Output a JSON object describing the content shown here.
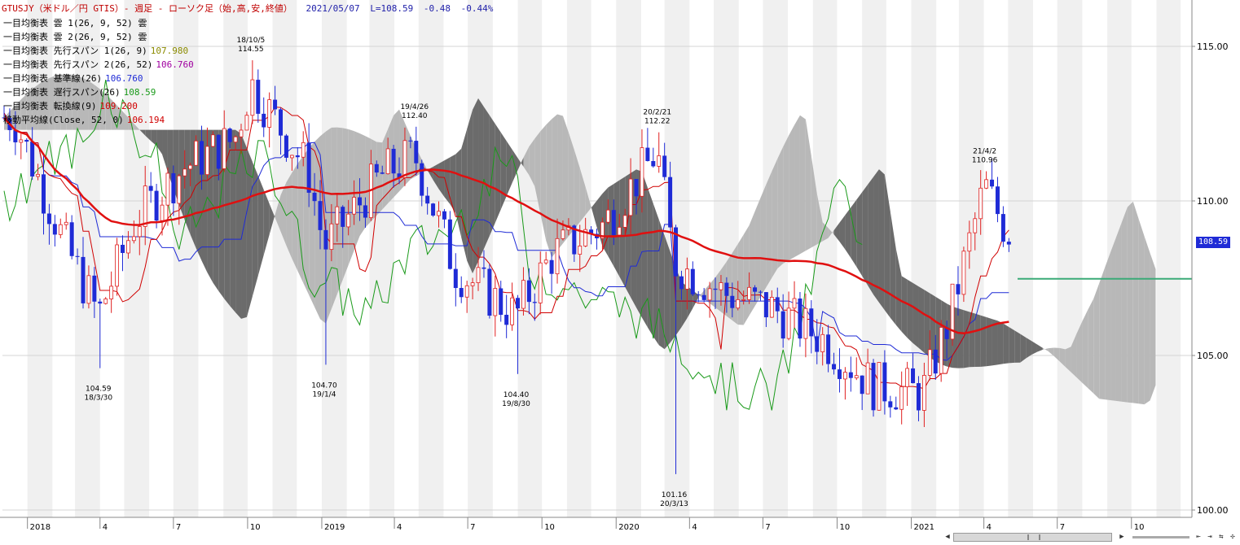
{
  "title": {
    "main": "GTUSJY（米ドル／円 GTIS）- 週足 - ローソク足（始,高,安,終値）",
    "date": "2021/05/07",
    "last": "L=108.59",
    "change": "-0.48",
    "change_pct": "-0.44%"
  },
  "legend": [
    {
      "label": "一目均衡表 雲 1(26, 9, 52) 雲",
      "value": "",
      "color": "#000000"
    },
    {
      "label": "一目均衡表 雲 2(26, 9, 52) 雲",
      "value": "",
      "color": "#000000"
    },
    {
      "label": "一目均衡表 先行スパン 1(26, 9)",
      "value": "107.980",
      "color": "#8b8b00"
    },
    {
      "label": "一目均衡表 先行スパン 2(26, 52)",
      "value": "106.760",
      "color": "#a000a0"
    },
    {
      "label": "一目均衡表 基準線(26)",
      "value": "106.760",
      "color": "#1f2bd6"
    },
    {
      "label": "一目均衡表 遅行スパン(26)",
      "value": "108.59",
      "color": "#1a9a1a"
    },
    {
      "label": "一目均衡表 転換線(9)",
      "value": "109.200",
      "color": "#d00000"
    },
    {
      "label": "移動平均線(Close, 52, 0)",
      "value": "106.194",
      "color": "#d00000"
    }
  ],
  "current_price_tag": "108.59",
  "colors": {
    "bull_candle": "#e02020",
    "bear_candle": "#1f2bd6",
    "cloud_up": "#b8b8b8",
    "cloud_down": "#6b6b6b",
    "ma": "#e01010",
    "kijun": "#1f2bd6",
    "tenkan": "#d00000",
    "chikou": "#1a9a1a",
    "hline": "#3aaa77"
  },
  "chart_data": {
    "type": "candlestick",
    "title": "",
    "xlabel": "",
    "ylabel": "",
    "ylim": [
      100,
      116.5
    ],
    "yticks": [
      "100.00",
      "105.00",
      "110.00",
      "115.00"
    ],
    "xticks": [
      {
        "label": "2018",
        "date": "2018-01"
      },
      {
        "label": "4",
        "date": "2018-04"
      },
      {
        "label": "7",
        "date": "2018-07"
      },
      {
        "label": "10",
        "date": "2018-10"
      },
      {
        "label": "2019",
        "date": "2019-01"
      },
      {
        "label": "4",
        "date": "2019-04"
      },
      {
        "label": "7",
        "date": "2019-07"
      },
      {
        "label": "10",
        "date": "2019-10"
      },
      {
        "label": "2020",
        "date": "2020-01"
      },
      {
        "label": "4",
        "date": "2020-04"
      },
      {
        "label": "7",
        "date": "2020-07"
      },
      {
        "label": "10",
        "date": "2020-10"
      },
      {
        "label": "2021",
        "date": "2021-01"
      },
      {
        "label": "4",
        "date": "2021-04"
      },
      {
        "label": "7",
        "date": "2021-07"
      },
      {
        "label": "10",
        "date": "2021-10"
      }
    ],
    "annotations": [
      {
        "date": "18/3/30",
        "price": "104.59",
        "position": "below"
      },
      {
        "date": "18/10/5",
        "price": "114.55",
        "position": "above"
      },
      {
        "date": "19/1/4",
        "price": "104.70",
        "position": "below"
      },
      {
        "date": "19/4/26",
        "price": "112.40",
        "position": "above"
      },
      {
        "date": "19/8/30",
        "price": "104.40",
        "position": "below"
      },
      {
        "date": "20/2/21",
        "price": "112.22",
        "position": "above"
      },
      {
        "date": "20/3/13",
        "price": "101.16",
        "position": "below"
      },
      {
        "date": "21/4/2",
        "price": "110.96",
        "position": "above"
      }
    ],
    "ohlc_keypoints": [
      {
        "x": "2017-12",
        "close": 112.7
      },
      {
        "x": "2018-02",
        "close": 108.7
      },
      {
        "x": "2018-03-30",
        "low": 104.59,
        "close": 106.3
      },
      {
        "x": "2018-05",
        "close": 109.4
      },
      {
        "x": "2018-07",
        "close": 111.1
      },
      {
        "x": "2018-09",
        "close": 112.0
      },
      {
        "x": "2018-10-05",
        "high": 114.55,
        "close": 113.8
      },
      {
        "x": "2018-12",
        "close": 111.0
      },
      {
        "x": "2019-01-04",
        "low": 104.7,
        "close": 108.5
      },
      {
        "x": "2019-03",
        "close": 110.8
      },
      {
        "x": "2019-04-26",
        "high": 112.4,
        "close": 111.5
      },
      {
        "x": "2019-06",
        "close": 107.8
      },
      {
        "x": "2019-08-30",
        "low": 104.4,
        "close": 106.3
      },
      {
        "x": "2019-10",
        "close": 108.3
      },
      {
        "x": "2019-12",
        "close": 109.2
      },
      {
        "x": "2020-02-21",
        "high": 112.22,
        "close": 111.6
      },
      {
        "x": "2020-03-13",
        "low": 101.16,
        "close": 108.0
      },
      {
        "x": "2020-05",
        "close": 107.0
      },
      {
        "x": "2020-07",
        "close": 106.5
      },
      {
        "x": "2020-09",
        "close": 105.5
      },
      {
        "x": "2020-11",
        "close": 104.0
      },
      {
        "x": "2021-01",
        "close": 103.8
      },
      {
        "x": "2021-02",
        "close": 106.0
      },
      {
        "x": "2021-04-02",
        "high": 110.96,
        "close": 110.5
      },
      {
        "x": "2021-05-07",
        "close": 108.59
      }
    ],
    "last_close": 108.59,
    "moving_average_52": 106.194,
    "tenkan_9": 109.2,
    "kijun_26": 106.76,
    "senkou_span_1": 107.98,
    "senkou_span_2": 106.76,
    "chikou_span_26": 108.59,
    "grid": true,
    "legend_position": "top-left"
  }
}
